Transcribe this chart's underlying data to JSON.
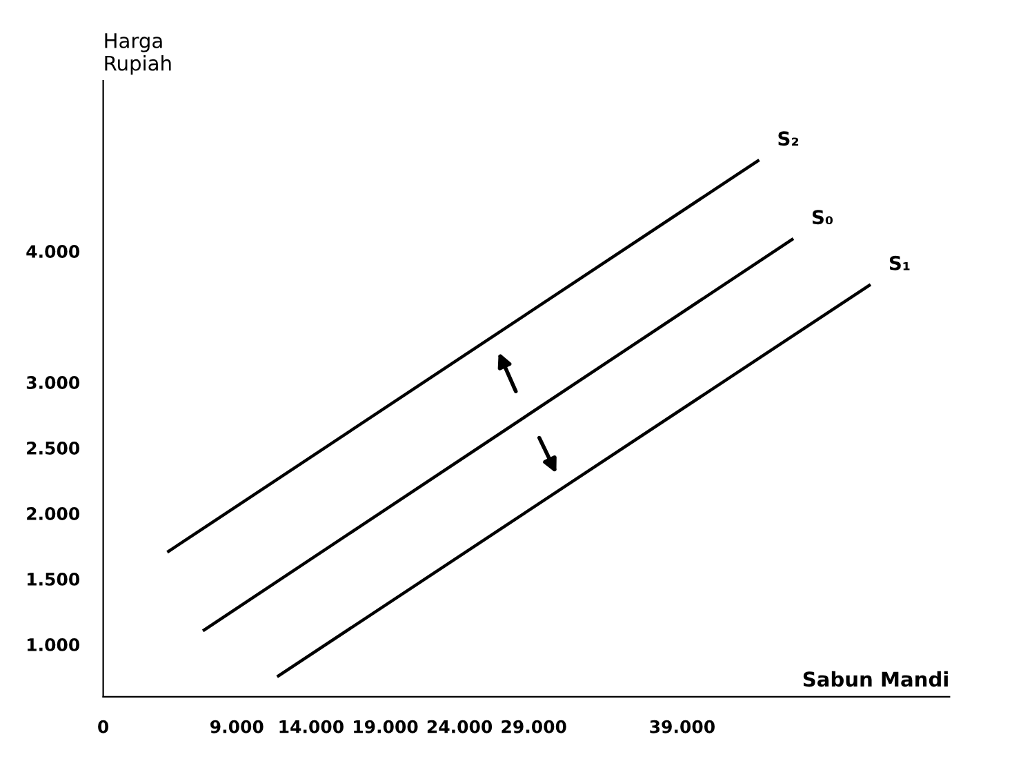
{
  "chart_data": {
    "type": "line",
    "xlabel": "Sabun Mandi",
    "ylabel": "Harga\nRupiah",
    "xlim": [
      0,
      57000
    ],
    "ylim": [
      600,
      5300
    ],
    "xticks": [
      {
        "value": 0,
        "label": "0"
      },
      {
        "value": 9000,
        "label": "9.000"
      },
      {
        "value": 14000,
        "label": "14.000"
      },
      {
        "value": 19000,
        "label": "19.000"
      },
      {
        "value": 24000,
        "label": "24.000"
      },
      {
        "value": 29000,
        "label": "29.000"
      },
      {
        "value": 39000,
        "label": "39.000"
      }
    ],
    "yticks": [
      {
        "value": 1000,
        "label": "1.000"
      },
      {
        "value": 1500,
        "label": "1.500"
      },
      {
        "value": 2000,
        "label": "2.000"
      },
      {
        "value": 2500,
        "label": "2.500"
      },
      {
        "value": 3000,
        "label": "3.000"
      },
      {
        "value": 4000,
        "label": "4.000"
      }
    ],
    "series": [
      {
        "name": "S₂",
        "color": "#000000",
        "x": [
          4400,
          44100
        ],
        "values": [
          1710,
          4690
        ]
      },
      {
        "name": "S₀",
        "color": "#000000",
        "x": [
          6800,
          46400
        ],
        "values": [
          1110,
          4090
        ]
      },
      {
        "name": "S₁",
        "color": "#000000",
        "x": [
          11800,
          51600
        ],
        "values": [
          760,
          3740
        ]
      }
    ],
    "grid": false,
    "legend": false,
    "marker": "none",
    "line_style": "solid"
  }
}
